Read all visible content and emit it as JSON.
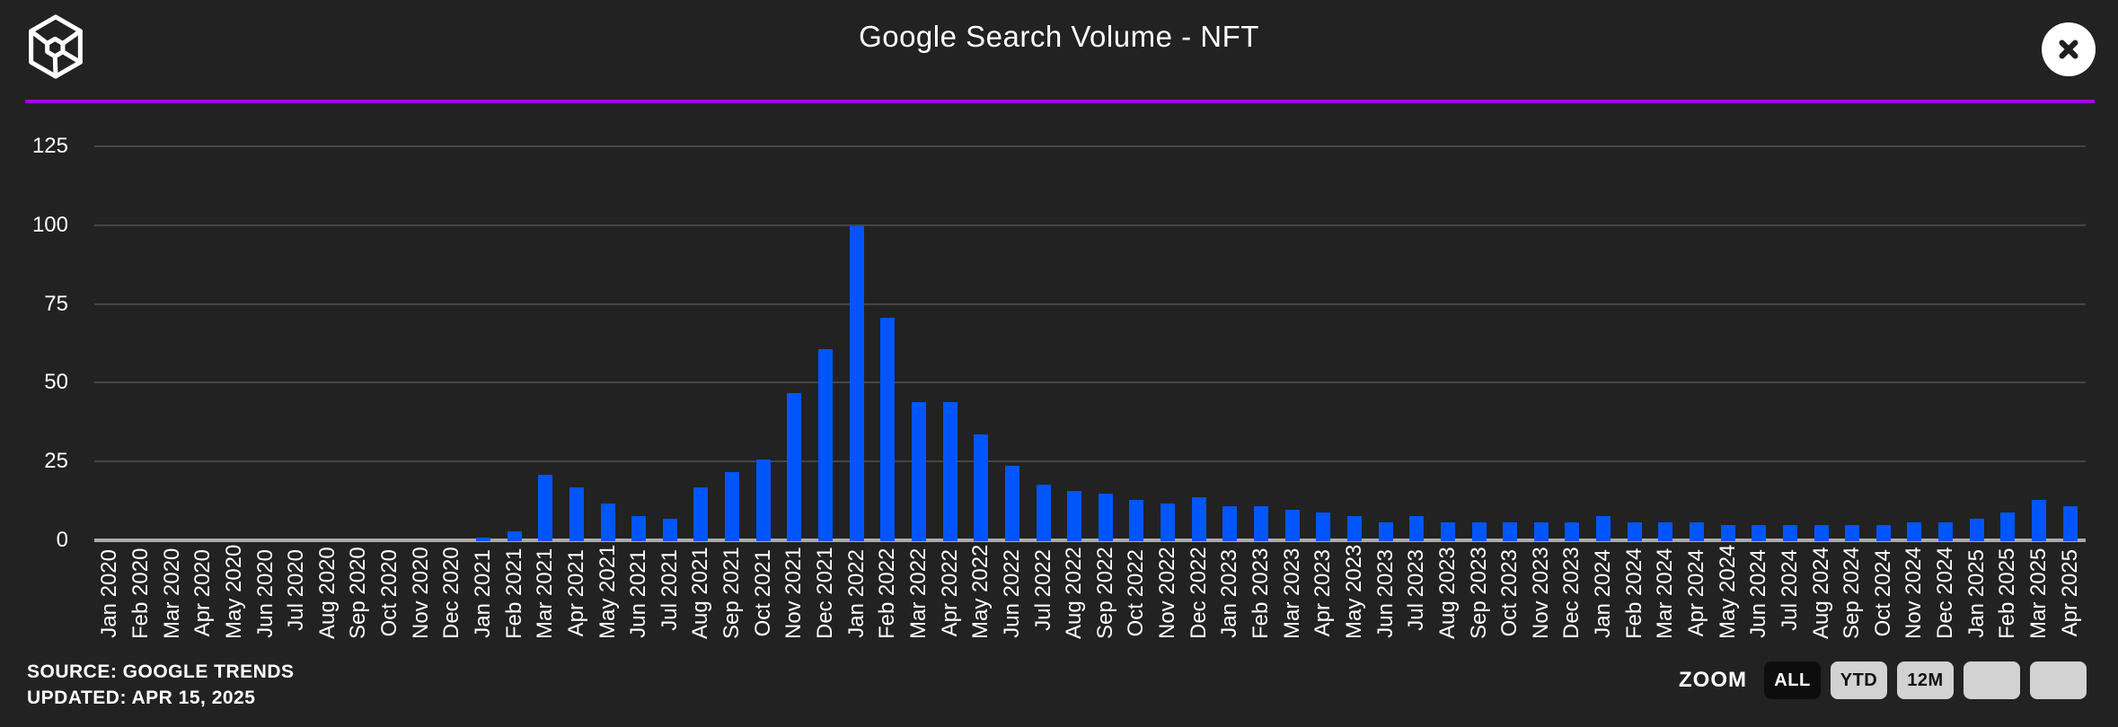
{
  "header": {
    "title": "Google Search Volume - NFT",
    "logo_icon": "wireframe-cube",
    "close_icon": "x-mark"
  },
  "colors": {
    "background": "#222222",
    "bar": "#0056FB",
    "accent_line": "#A000F0",
    "gridline": "#454545",
    "baseline": "#ABABAB",
    "text": "#FFFFFF",
    "button_light": "#D2D2D2",
    "button_dark": "#0D0D0D"
  },
  "chart_data": {
    "type": "bar",
    "title": "Google Search Volume - NFT",
    "xlabel": "",
    "ylabel": "",
    "yticks": [
      0,
      25,
      50,
      75,
      100,
      125
    ],
    "ylim": [
      0,
      131
    ],
    "grid": true,
    "legend": false,
    "x_label_rotation": -90,
    "categories": [
      "Jan 2020",
      "Feb 2020",
      "Mar 2020",
      "Apr 2020",
      "May 2020",
      "Jun 2020",
      "Jul 2020",
      "Aug 2020",
      "Sep 2020",
      "Oct 2020",
      "Nov 2020",
      "Dec 2020",
      "Jan 2021",
      "Feb 2021",
      "Mar 2021",
      "Apr 2021",
      "May 2021",
      "Jun 2021",
      "Jul 2021",
      "Aug 2021",
      "Sep 2021",
      "Oct 2021",
      "Nov 2021",
      "Dec 2021",
      "Jan 2022",
      "Feb 2022",
      "Mar 2022",
      "Apr 2022",
      "May 2022",
      "Jun 2022",
      "Jul 2022",
      "Aug 2022",
      "Sep 2022",
      "Oct 2022",
      "Nov 2022",
      "Dec 2022",
      "Jan 2023",
      "Feb 2023",
      "Mar 2023",
      "Apr 2023",
      "May 2023",
      "Jun 2023",
      "Jul 2023",
      "Aug 2023",
      "Sep 2023",
      "Oct 2023",
      "Nov 2023",
      "Dec 2023",
      "Jan 2024",
      "Feb 2024",
      "Mar 2024",
      "Apr 2024",
      "May 2024",
      "Jun 2024",
      "Jul 2024",
      "Aug 2024",
      "Sep 2024",
      "Oct 2024",
      "Nov 2024",
      "Dec 2024",
      "Jan 2025",
      "Feb 2025",
      "Mar 2025",
      "Apr 2025"
    ],
    "values": [
      0,
      0,
      0,
      0,
      0,
      0,
      0,
      0,
      0,
      0,
      0,
      0,
      1,
      3,
      21,
      17,
      12,
      8,
      7,
      17,
      22,
      26,
      47,
      61,
      100,
      71,
      44,
      44,
      34,
      24,
      18,
      16,
      15,
      13,
      12,
      14,
      11,
      11,
      10,
      9,
      8,
      6,
      8,
      6,
      6,
      6,
      6,
      6,
      8,
      6,
      6,
      6,
      5,
      5,
      5,
      5,
      5,
      5,
      6,
      6,
      7,
      9,
      13,
      11
    ]
  },
  "footer": {
    "source_line1": "SOURCE: GOOGLE TRENDS",
    "source_line2": "UPDATED: APR 15, 2025",
    "zoom_label": "ZOOM",
    "zoom_buttons": [
      {
        "label": "ALL",
        "active": true
      },
      {
        "label": "YTD",
        "active": false
      },
      {
        "label": "12M",
        "active": false
      },
      {
        "label": "",
        "active": false
      },
      {
        "label": "",
        "active": false
      }
    ]
  }
}
